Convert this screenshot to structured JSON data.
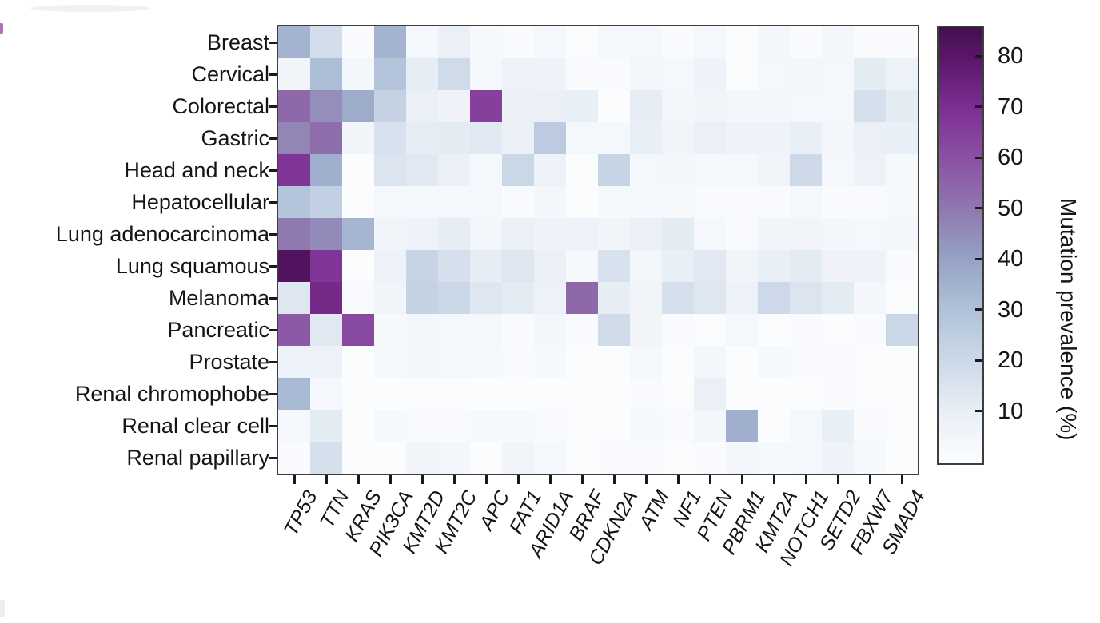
{
  "chart_data": {
    "type": "heatmap",
    "title": "",
    "xlabel": "",
    "ylabel": "",
    "value_unit": "%",
    "grid": false,
    "legend_position": "right",
    "rows": [
      "Breast",
      "Cervical",
      "Colorectal",
      "Gastric",
      "Head and neck",
      "Hepatocellular",
      "Lung adenocarcinoma",
      "Lung squamous",
      "Melanoma",
      "Pancreatic",
      "Prostate",
      "Renal chromophobe",
      "Renal clear cell",
      "Renal papillary"
    ],
    "columns": [
      "TP53",
      "TTN",
      "KRAS",
      "PIK3CA",
      "KMT2D",
      "KMT2C",
      "APC",
      "FAT1",
      "ARID1A",
      "BRAF",
      "CDKN2A",
      "ATM",
      "NF1",
      "PTEN",
      "PBRM1",
      "KMT2A",
      "NOTCH1",
      "SETD2",
      "FBXW7",
      "SMAD4"
    ],
    "values": [
      [
        35,
        18,
        2,
        35,
        4,
        9,
        3,
        2,
        4,
        1,
        4,
        4,
        2,
        4,
        1,
        5,
        2,
        5,
        2,
        2
      ],
      [
        6,
        31,
        5,
        29,
        11,
        19,
        4,
        8,
        7,
        2,
        2,
        5,
        4,
        7,
        1,
        4,
        5,
        4,
        12,
        8
      ],
      [
        54,
        45,
        37,
        23,
        9,
        7,
        65,
        9,
        9,
        10,
        1,
        11,
        5,
        6,
        5,
        5,
        4,
        4,
        17,
        12
      ],
      [
        47,
        53,
        6,
        16,
        11,
        12,
        13,
        9,
        26,
        4,
        4,
        10,
        6,
        9,
        7,
        7,
        10,
        5,
        9,
        10
      ],
      [
        68,
        36,
        1,
        15,
        13,
        9,
        4,
        21,
        8,
        1,
        22,
        4,
        5,
        4,
        4,
        6,
        20,
        4,
        8,
        3
      ],
      [
        29,
        24,
        1,
        4,
        4,
        4,
        4,
        2,
        5,
        1,
        3,
        4,
        3,
        2,
        2,
        2,
        4,
        2,
        2,
        3
      ],
      [
        50,
        46,
        34,
        6,
        7,
        11,
        5,
        9,
        7,
        8,
        6,
        9,
        12,
        4,
        2,
        6,
        6,
        5,
        4,
        5
      ],
      [
        82,
        68,
        1,
        8,
        22,
        17,
        11,
        14,
        9,
        3,
        16,
        5,
        10,
        13,
        6,
        10,
        12,
        7,
        7,
        2
      ],
      [
        14,
        72,
        2,
        6,
        23,
        21,
        14,
        12,
        8,
        54,
        11,
        6,
        17,
        14,
        8,
        20,
        15,
        12,
        5,
        1
      ],
      [
        58,
        13,
        62,
        3,
        5,
        4,
        4,
        2,
        5,
        2,
        19,
        6,
        2,
        1,
        4,
        1,
        2,
        1,
        2,
        21
      ],
      [
        8,
        8,
        1,
        3,
        5,
        4,
        3,
        2,
        3,
        1,
        1,
        4,
        1,
        5,
        1,
        3,
        2,
        2,
        1,
        1
      ],
      [
        33,
        4,
        1,
        1,
        1,
        1,
        1,
        1,
        1,
        1,
        1,
        2,
        1,
        9,
        1,
        1,
        1,
        2,
        1,
        1
      ],
      [
        4,
        12,
        1,
        3,
        2,
        2,
        3,
        3,
        2,
        1,
        1,
        3,
        2,
        5,
        36,
        1,
        4,
        10,
        2,
        1
      ],
      [
        2,
        17,
        1,
        1,
        6,
        5,
        1,
        6,
        4,
        1,
        2,
        2,
        1,
        2,
        5,
        3,
        4,
        7,
        3,
        1
      ]
    ],
    "colorbar": {
      "label": "Mutation prevalence (%)",
      "ticks": [
        80,
        70,
        60,
        50,
        40,
        30,
        20,
        10
      ],
      "vmin": 0,
      "vmax": 86,
      "gradient_anchors": [
        {
          "value": 0,
          "color": "#fcfdff"
        },
        {
          "value": 10,
          "color": "#e9eff6"
        },
        {
          "value": 20,
          "color": "#cdd9e8"
        },
        {
          "value": 30,
          "color": "#b0c2d9"
        },
        {
          "value": 40,
          "color": "#96a3c6"
        },
        {
          "value": 50,
          "color": "#8f79ae"
        },
        {
          "value": 60,
          "color": "#8b51a5"
        },
        {
          "value": 70,
          "color": "#7c2f92"
        },
        {
          "value": 80,
          "color": "#5a1668"
        },
        {
          "value": 86,
          "color": "#440f4e"
        }
      ]
    }
  }
}
